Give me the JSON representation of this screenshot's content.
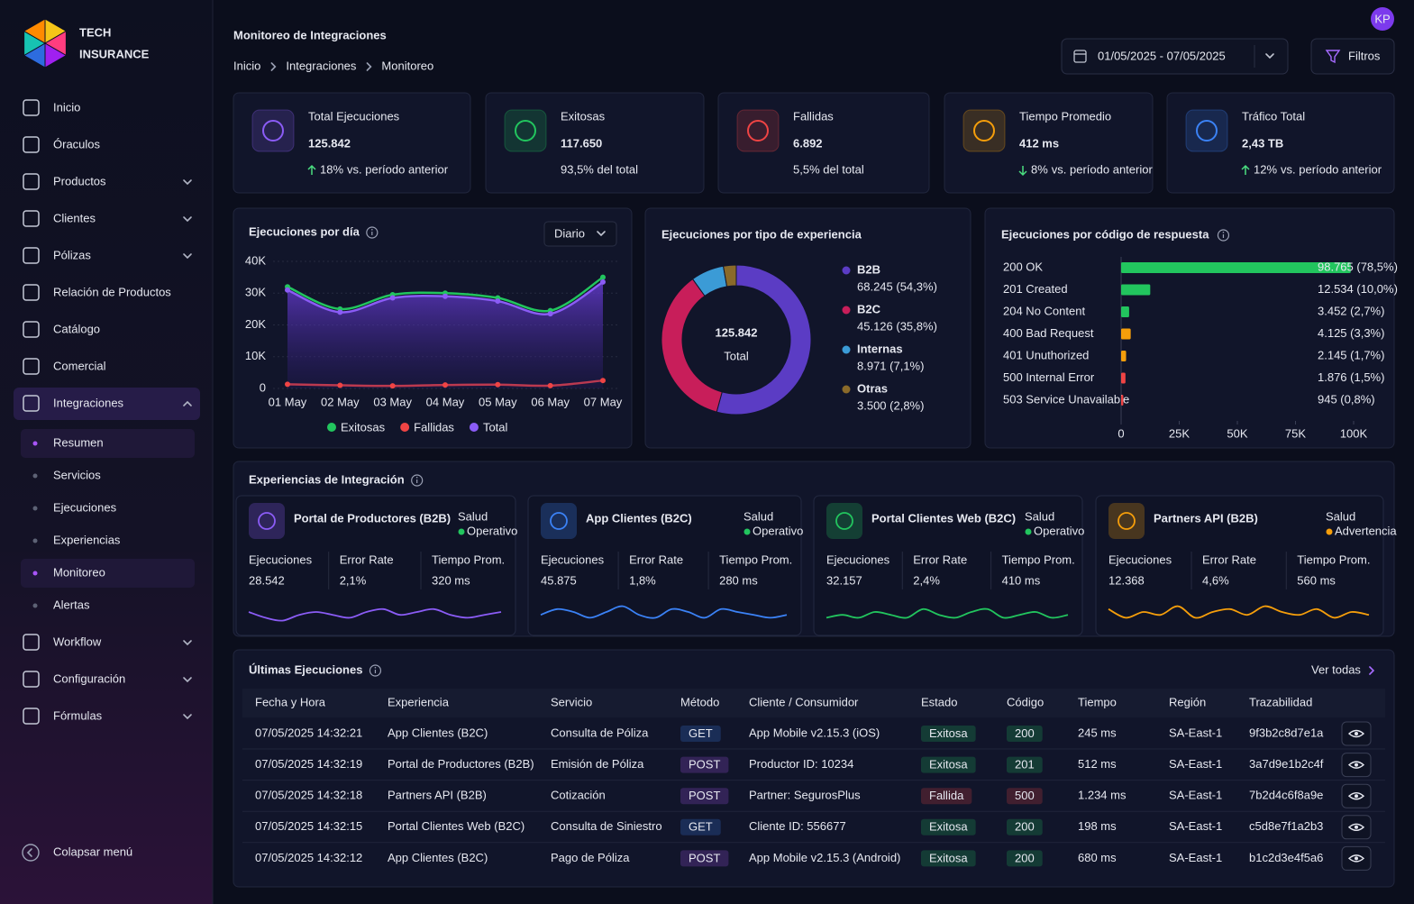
{
  "brand": {
    "line1": "TECH",
    "line2": "INSURANCE"
  },
  "user": {
    "initials": "KP"
  },
  "nav": [
    {
      "label": "Inicio"
    },
    {
      "label": "Óraculos"
    },
    {
      "label": "Productos",
      "submenu": true
    },
    {
      "label": "Clientes",
      "submenu": true
    },
    {
      "label": "Pólizas",
      "submenu": true
    },
    {
      "label": "Relación de Productos"
    },
    {
      "label": "Catálogo"
    },
    {
      "label": "Comercial"
    },
    {
      "label": "Integraciones",
      "submenu": true,
      "open": true,
      "active": true,
      "children": [
        {
          "label": "Resumen",
          "active": true
        },
        {
          "label": "Servicios"
        },
        {
          "label": "Ejecuciones"
        },
        {
          "label": "Experiencias"
        },
        {
          "label": "Monitoreo",
          "active": true
        },
        {
          "label": "Alertas"
        }
      ]
    },
    {
      "label": "Workflow",
      "submenu": true
    },
    {
      "label": "Configuración",
      "submenu": true
    },
    {
      "label": "Fórmulas",
      "submenu": true
    }
  ],
  "collapse_menu": "Colapsar menú",
  "header": {
    "title": "Monitoreo de Integraciones",
    "breadcrumb": [
      "Inicio",
      "Integraciones",
      "Monitoreo"
    ],
    "date_range": "01/05/2025 - 07/05/2025",
    "filters": "Filtros"
  },
  "kpis": [
    {
      "label": "Total Ejecuciones",
      "value": "125.842",
      "change": "18%",
      "change_text": "vs. período anterior",
      "trend": "up",
      "color": "#8b5cf6"
    },
    {
      "label": "Exitosas",
      "value": "117.650",
      "note": "93,5% del total",
      "color": "#22c55e"
    },
    {
      "label": "Fallidas",
      "value": "6.892",
      "note": "5,5% del total",
      "color": "#ef4444"
    },
    {
      "label": "Tiempo Promedio",
      "value": "412 ms",
      "change": "8%",
      "change_text": "vs. período anterior",
      "trend": "down",
      "color": "#f59e0b"
    },
    {
      "label": "Tráfico Total",
      "value": "2,43 TB",
      "change": "12%",
      "change_text": "vs. período anterior",
      "trend": "up",
      "color": "#3b82f6"
    }
  ],
  "chart_data": [
    {
      "type": "line",
      "title": "Ejecuciones por día",
      "selector": "Diario",
      "categories": [
        "01 May",
        "02 May",
        "03 May",
        "04 May",
        "05 May",
        "06 May",
        "07 May"
      ],
      "series": [
        {
          "name": "Exitosas",
          "color": "#22c55e",
          "values": [
            32000,
            25000,
            29500,
            30000,
            28500,
            24500,
            35000
          ]
        },
        {
          "name": "Fallidas",
          "color": "#ef4444",
          "values": [
            1300,
            1000,
            800,
            1100,
            1200,
            900,
            2500
          ]
        },
        {
          "name": "Total",
          "color": "#8b5cf6",
          "area": true,
          "values": [
            31000,
            24000,
            28500,
            29000,
            27500,
            23500,
            33500
          ]
        }
      ],
      "ylim": [
        0,
        40000
      ],
      "yticks": [
        0,
        {
          "value": 10000,
          "label": "10K"
        },
        {
          "value": 20000,
          "label": "20K"
        },
        {
          "value": 30000,
          "label": "30K"
        },
        {
          "value": 40000,
          "label": "40K"
        }
      ],
      "grid": true
    },
    {
      "type": "pie",
      "donut": true,
      "title": "Ejecuciones por tipo de experiencia",
      "center_value": "125.842",
      "center_label": "Total",
      "categories": [
        "B2B",
        "B2C",
        "Internas",
        "Otras"
      ],
      "values": [
        68245,
        45126,
        8971,
        3500
      ],
      "value_labels": [
        "68.245 (54,3%)",
        "45.126 (35,8%)",
        "8.971 (7,1%)",
        "3.500 (2,8%)"
      ],
      "colors": [
        "#5b3cc4",
        "#c81e5a",
        "#3b9bd6",
        "#8a6a2a"
      ]
    },
    {
      "type": "bar",
      "title": "Ejecuciones por código de respuesta",
      "categories": [
        "200 OK",
        "201 Created",
        "204 No Content",
        "400 Bad Request",
        "401 Unuthorized",
        "500 Internal Error",
        "503 Service Unavailable"
      ],
      "values": [
        98765,
        12534,
        3452,
        4125,
        2145,
        1876,
        945
      ],
      "value_labels": [
        "98.765 (78,5%)",
        "12.534 (10,0%)",
        "3.452 (2,7%)",
        "4.125 (3,3%)",
        "2.145 (1,7%)",
        "1.876 (1,5%)",
        "945 (0,8%)"
      ],
      "colors": [
        "#22c55e",
        "#22c55e",
        "#22c55e",
        "#f59e0b",
        "#f59e0b",
        "#ef4444",
        "#ef4444"
      ],
      "xlim": [
        0,
        100000
      ],
      "xticks": [
        0,
        {
          "value": 25000,
          "label": "25K"
        },
        {
          "value": 50000,
          "label": "50K"
        },
        {
          "value": 75000,
          "label": "75K"
        },
        {
          "value": 100000,
          "label": "100K"
        }
      ]
    }
  ],
  "experiences": {
    "title": "Experiencias de Integración",
    "health_label": "Salud",
    "metric_labels": [
      "Ejecuciones",
      "Error Rate",
      "Tiempo Prom."
    ],
    "trend_range": [
      0,
      10
    ],
    "items": [
      {
        "name": "Portal de Productores (B2B)",
        "status": "Operativo",
        "status_color": "#22c55e",
        "color": "#8b5cf6",
        "metrics": [
          "28.542",
          "2,1%",
          "320 ms"
        ],
        "trend": [
          5,
          3,
          2,
          4,
          5,
          4,
          3,
          5,
          6,
          4,
          5,
          6,
          4,
          3,
          4,
          5
        ]
      },
      {
        "name": "App Clientes (B2C)",
        "status": "Operativo",
        "status_color": "#22c55e",
        "color": "#3b82f6",
        "metrics": [
          "45.875",
          "1,8%",
          "280 ms"
        ],
        "trend": [
          4,
          6,
          5,
          3,
          5,
          7,
          4,
          3,
          6,
          5,
          3,
          6,
          5,
          4,
          3,
          4
        ]
      },
      {
        "name": "Portal Clientes Web (B2C)",
        "status": "Operativo",
        "status_color": "#22c55e",
        "color": "#22c55e",
        "metrics": [
          "32.157",
          "2,4%",
          "410 ms"
        ],
        "trend": [
          3,
          4,
          3,
          5,
          4,
          3,
          6,
          4,
          3,
          5,
          6,
          3,
          4,
          5,
          3,
          4
        ]
      },
      {
        "name": "Partners API (B2B)",
        "status": "Advertencia",
        "status_color": "#f59e0b",
        "color": "#f59e0b",
        "metrics": [
          "12.368",
          "4,6%",
          "560 ms"
        ],
        "trend": [
          6,
          3,
          5,
          4,
          7,
          3,
          5,
          6,
          4,
          7,
          5,
          4,
          6,
          3,
          5,
          4
        ]
      }
    ]
  },
  "table": {
    "title": "Últimas Ejecuciones",
    "link": "Ver todas",
    "columns": [
      "Fecha y Hora",
      "Experiencia",
      "Servicio",
      "Método",
      "Cliente / Consumidor",
      "Estado",
      "Código",
      "Tiempo",
      "Región",
      "Trazabilidad"
    ],
    "method_colors": {
      "GET": "#3b82f6",
      "POST": "#a855f7"
    },
    "status_colors": {
      "Exitosa": "#22c55e",
      "Fallida": "#ef4444"
    },
    "rows": [
      [
        "07/05/2025 14:32:21",
        "App Clientes (B2C)",
        "Consulta de Póliza",
        "GET",
        "App Mobile v2.15.3 (iOS)",
        "Exitosa",
        "200",
        "245 ms",
        "SA-East-1",
        "9f3b2c8d7e1a"
      ],
      [
        "07/05/2025 14:32:19",
        "Portal de Productores (B2B)",
        "Emisión de Póliza",
        "POST",
        "Productor ID: 10234",
        "Exitosa",
        "201",
        "512 ms",
        "SA-East-1",
        "3a7d9e1b2c4f"
      ],
      [
        "07/05/2025 14:32:18",
        "Partners API (B2B)",
        "Cotización",
        "POST",
        "Partner: SegurosPlus",
        "Fallida",
        "500",
        "1.234 ms",
        "SA-East-1",
        "7b2d4c6f8a9e"
      ],
      [
        "07/05/2025 14:32:15",
        "Portal Clientes Web (B2C)",
        "Consulta de Siniestro",
        "GET",
        "Cliente ID: 556677",
        "Exitosa",
        "200",
        "198 ms",
        "SA-East-1",
        "c5d8e7f1a2b3"
      ],
      [
        "07/05/2025 14:32:12",
        "App Clientes (B2C)",
        "Pago de Póliza",
        "POST",
        "App Mobile v2.15.3 (Android)",
        "Exitosa",
        "200",
        "680 ms",
        "SA-East-1",
        "b1c2d3e4f5a6"
      ]
    ]
  }
}
